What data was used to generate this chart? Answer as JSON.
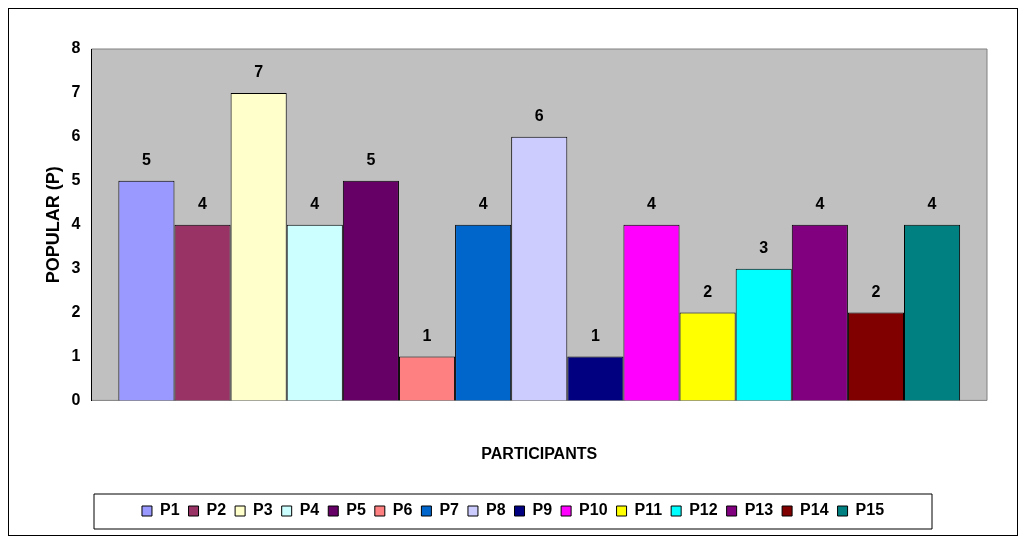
{
  "chart_data": {
    "type": "bar",
    "xlabel": "PARTICIPANTS",
    "ylabel": "POPULAR (P)",
    "categories": [
      null
    ],
    "series": [
      {
        "name": "P1",
        "color": "#9999ff",
        "values": [
          5
        ]
      },
      {
        "name": "P2",
        "color": "#993366",
        "values": [
          4
        ]
      },
      {
        "name": "P3",
        "color": "#ffffcc",
        "values": [
          7
        ]
      },
      {
        "name": "P4",
        "color": "#ccffff",
        "values": [
          4
        ]
      },
      {
        "name": "P5",
        "color": "#660066",
        "values": [
          5
        ]
      },
      {
        "name": "P6",
        "color": "#ff8080",
        "values": [
          1
        ]
      },
      {
        "name": "P7",
        "color": "#0066cc",
        "values": [
          4
        ]
      },
      {
        "name": "P8",
        "color": "#ccccff",
        "values": [
          6
        ]
      },
      {
        "name": "P9",
        "color": "#000080",
        "values": [
          1
        ]
      },
      {
        "name": "P10",
        "color": "#ff00ff",
        "values": [
          4
        ]
      },
      {
        "name": "P11",
        "color": "#ffff00",
        "values": [
          2
        ]
      },
      {
        "name": "P12",
        "color": "#00ffff",
        "values": [
          3
        ]
      },
      {
        "name": "P13",
        "color": "#800080",
        "values": [
          4
        ]
      },
      {
        "name": "P14",
        "color": "#800000",
        "values": [
          2
        ]
      },
      {
        "name": "P15",
        "color": "#008080",
        "values": [
          4
        ]
      }
    ],
    "ylim": [
      0,
      8
    ],
    "yticks": [
      0,
      1,
      2,
      3,
      4,
      5,
      6,
      7,
      8
    ],
    "grid": false,
    "legend": "bottom",
    "data_labels": true
  }
}
